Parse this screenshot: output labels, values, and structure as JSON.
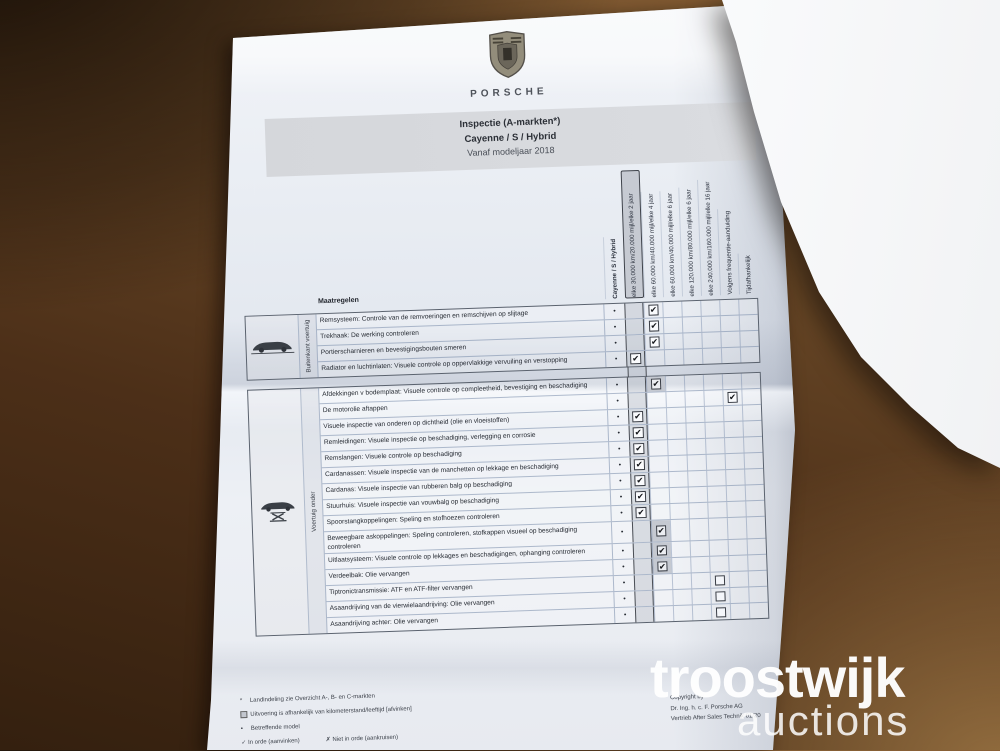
{
  "photo": {
    "watermark": {
      "line1": "troostwijk",
      "line2": "auctions"
    }
  },
  "colors": {
    "paper": "#edf0f5",
    "banner": "#d7d9dd",
    "highlight_column": "#c6cad2",
    "wood_dark": "#34200f",
    "wood_light": "#9a7243",
    "watermark": "#ffffff"
  },
  "doc": {
    "brand": "PORSCHE",
    "banner": {
      "line1": "Inspectie (A-markten*)",
      "line2": "Cayenne / S / Hybrid",
      "line3": "Vanaf modeljaar 2018"
    },
    "measures_header": "Maatregelen",
    "row_marker": "•",
    "check_glyph": "✔",
    "columns": [
      {
        "label": "Cayenne / S / Hybrid",
        "bold": true
      },
      {
        "label": "elke 30.000 km/20.000 mijl/elke 2 jaar",
        "highlight": true
      },
      {
        "label": "elke 60.000 km/40.000 mijl/elke 4 jaar"
      },
      {
        "label": "elke 60.000 km/40.000 mijl/elke 6 jaar"
      },
      {
        "label": "elke 120.000 km/80.000 mijl/elke 6 jaar"
      },
      {
        "label": "elke 240.000 km/160.000 mijl/elke 16 jaar"
      },
      {
        "label": "Volgens frequentie-aanduiding"
      },
      {
        "label": "Tijdafhankelijk"
      }
    ],
    "sections": [
      {
        "icon": "car-side-icon",
        "label": "Buitenkant voertuig",
        "rows": [
          {
            "text": "Remsysteem: Controle van de remvoeringen en remschijven op slijtage",
            "marks": [
              {
                "col": 2
              }
            ]
          },
          {
            "text": "Trekhaak: De werking controleren",
            "marks": [
              {
                "col": 2
              }
            ]
          },
          {
            "text": "Portierscharnieren en bevestigingsbouten smeren",
            "marks": [
              {
                "col": 2
              }
            ]
          },
          {
            "text": "Radiator en luchtinlaten: Visuele controle op oppervlakkige vervuiling en verstopping",
            "marks": [
              {
                "col": 1
              }
            ]
          }
        ]
      },
      {
        "icon": "car-lift-icon",
        "label": "Voertuig onder",
        "rows": [
          {
            "text": "Afdekkingen v bodemplaat: Visuele controle op compleetheid, bevestiging en beschadiging",
            "marks": [
              {
                "col": 2,
                "gray": true
              }
            ]
          },
          {
            "text": "De motorolie aftappen",
            "marks": [
              {
                "col": 6
              }
            ]
          },
          {
            "text": "Visuele inspectie van onderen op dichtheid (olie en vloeistoffen)",
            "marks": [
              {
                "col": 1
              }
            ]
          },
          {
            "text": "Remleidingen: Visuele inspectie op beschadiging, verlegging en corrosie",
            "marks": [
              {
                "col": 1
              }
            ]
          },
          {
            "text": "Remslangen: Visuele controle op beschadiging",
            "marks": [
              {
                "col": 1
              }
            ]
          },
          {
            "text": "Cardanassen: Visuele inspectie van de manchetten op lekkage en beschadiging",
            "marks": [
              {
                "col": 1
              }
            ]
          },
          {
            "text": "Cardanas: Visuele inspectie van rubberen balg op beschadiging",
            "marks": [
              {
                "col": 1
              }
            ]
          },
          {
            "text": "Stuurhuis: Visuele inspectie van vouwbalg op beschadiging",
            "marks": [
              {
                "col": 1
              }
            ]
          },
          {
            "text": "Spoorstangkoppelingen: Speling en stofhoezen controleren",
            "marks": [
              {
                "col": 1
              }
            ]
          },
          {
            "text": "Beweegbare askoppelingen: Speling controleren, stofkappen visueel op beschadiging controleren",
            "marks": [
              {
                "col": 2,
                "gray": true
              }
            ]
          },
          {
            "text": "Uitlaatsysteem: Visuele controle op lekkages en beschadigingen, ophanging controleren",
            "marks": [
              {
                "col": 2,
                "gray": true
              }
            ]
          },
          {
            "text": "Verdeelbak: Olie vervangen",
            "marks": [
              {
                "col": 2,
                "gray": true
              }
            ]
          },
          {
            "text": "Tiptronictransmissie: ATF en ATF-filter vervangen",
            "marks": [
              {
                "col": 5,
                "box": true
              }
            ]
          },
          {
            "text": "Asaandrijving van de vierwielaandrijving: Olie vervangen",
            "marks": [
              {
                "col": 5,
                "box": true
              }
            ]
          },
          {
            "text": "Asaandrijving achter: Olie vervangen",
            "marks": [
              {
                "col": 5,
                "box": true
              }
            ]
          }
        ]
      }
    ],
    "footnotes": [
      {
        "marker": "*",
        "text": "Landindeling zie Overzicht A-, B- en C-markten"
      },
      {
        "marker": "box",
        "text": "Uitvoering is afhankelijk van kilometerstand/leeftijd [afvinken]"
      },
      {
        "marker": "•",
        "text": "Betreffende model"
      }
    ],
    "legend": [
      {
        "marker": "✓",
        "text": "In orde (aanvinken)"
      },
      {
        "marker": "✗",
        "text": "Niet in orde (aankruisen)"
      }
    ],
    "copyright": [
      "Copyright by",
      "Dr. Ing. h. c. F. Porsche AG",
      "Vertrieb After Sales Technik 01/20"
    ]
  }
}
